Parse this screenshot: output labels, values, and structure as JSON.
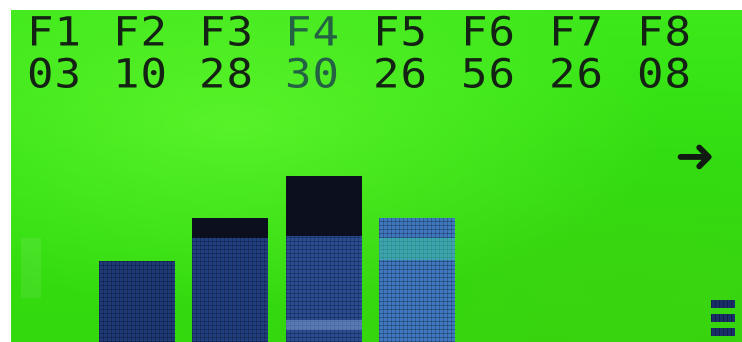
{
  "display": {
    "channels": [
      {
        "name": "F1",
        "value": "03"
      },
      {
        "name": "F2",
        "value": "10"
      },
      {
        "name": "F3",
        "value": "28"
      },
      {
        "name": "F4",
        "value": "30"
      },
      {
        "name": "F5",
        "value": "26"
      },
      {
        "name": "F6",
        "value": "56"
      },
      {
        "name": "F7",
        "value": "26"
      },
      {
        "name": "F8",
        "value": "08"
      }
    ],
    "arrow_icon": "right-arrow-icon",
    "colors": {
      "lcd_background": "#33e010",
      "lcd_text": "#142214",
      "bar_fill": "#1e3a78",
      "bar_cap": "#0b0f1e"
    }
  }
}
